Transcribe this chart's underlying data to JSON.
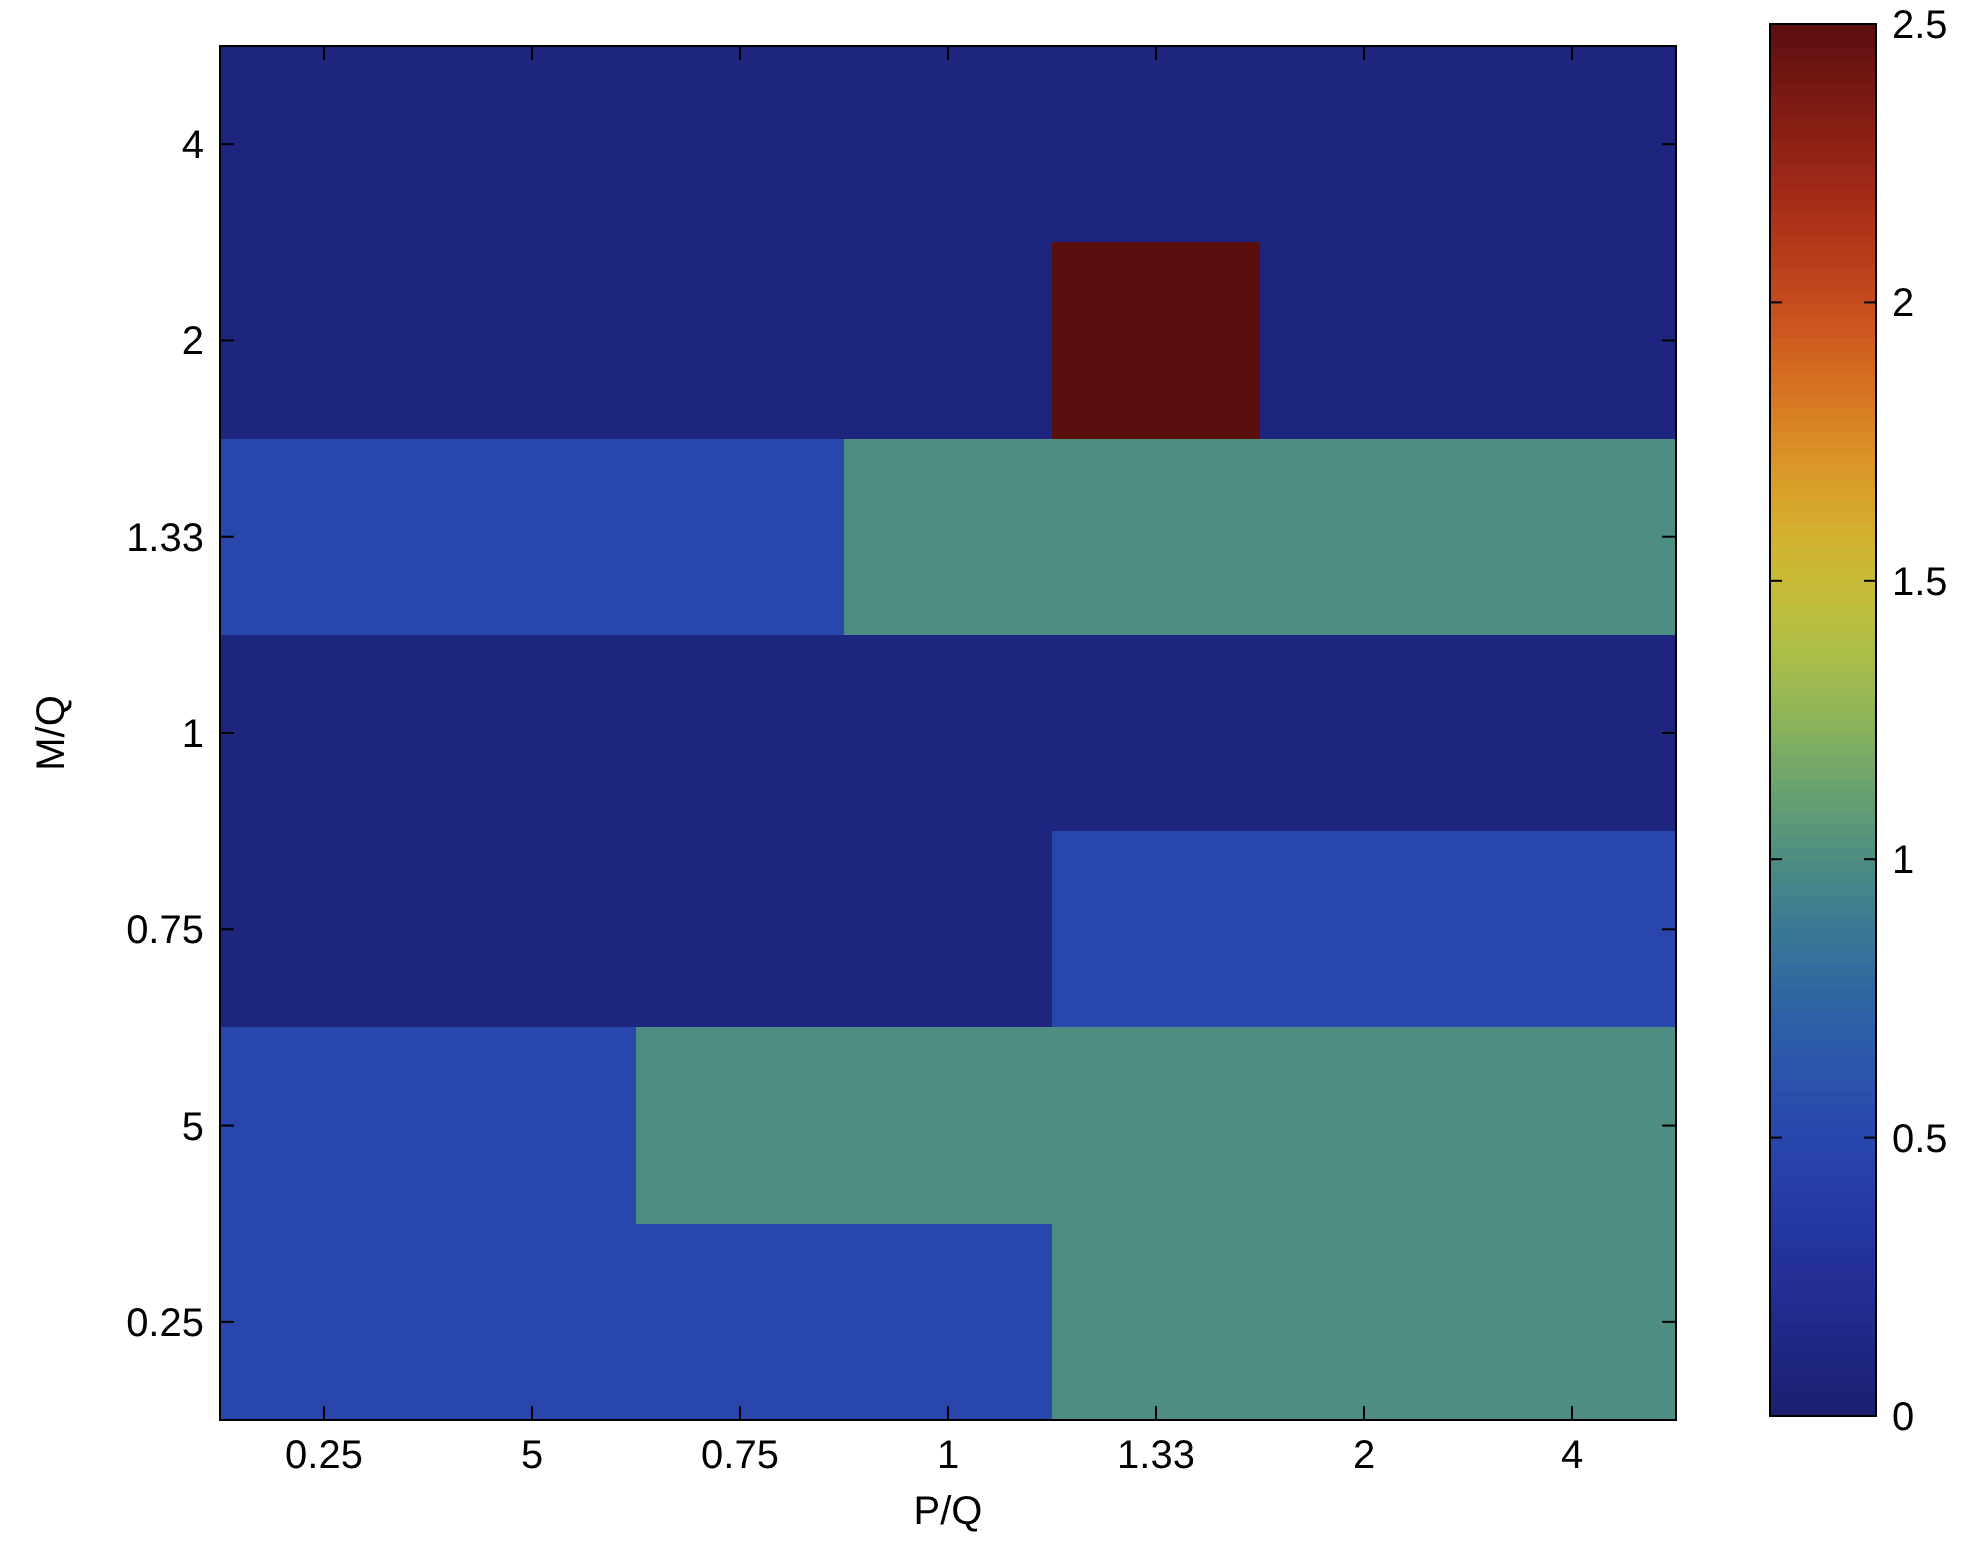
{
  "chart_data": {
    "type": "heatmap",
    "xlabel": "P/Q",
    "ylabel": "M/Q",
    "categories": [
      "0.25",
      "5",
      "0.75",
      "1",
      "1.33",
      "2",
      "4"
    ],
    "y_categories": [
      "4",
      "2",
      "1.33",
      "1",
      "0.75",
      "5",
      "0.25"
    ],
    "cells": [
      [
        0.1,
        0.1,
        0.1,
        0.1,
        0.1,
        0.1,
        0.1
      ],
      [
        0.1,
        0.1,
        0.1,
        0.1,
        2.5,
        0.1,
        0.1
      ],
      [
        0.5,
        0.5,
        0.5,
        1.0,
        1.0,
        1.0,
        1.0
      ],
      [
        0.1,
        0.1,
        0.1,
        0.1,
        0.1,
        0.1,
        0.1
      ],
      [
        0.1,
        0.1,
        0.1,
        0.1,
        0.5,
        0.5,
        0.5
      ],
      [
        0.5,
        0.5,
        1.0,
        1.0,
        1.0,
        1.0,
        1.0
      ],
      [
        0.5,
        0.5,
        0.5,
        0.5,
        1.0,
        1.0,
        1.0
      ]
    ],
    "clim": [
      0,
      2.5
    ],
    "cticks": [
      0,
      0.5,
      1,
      1.5,
      2,
      2.5
    ]
  }
}
